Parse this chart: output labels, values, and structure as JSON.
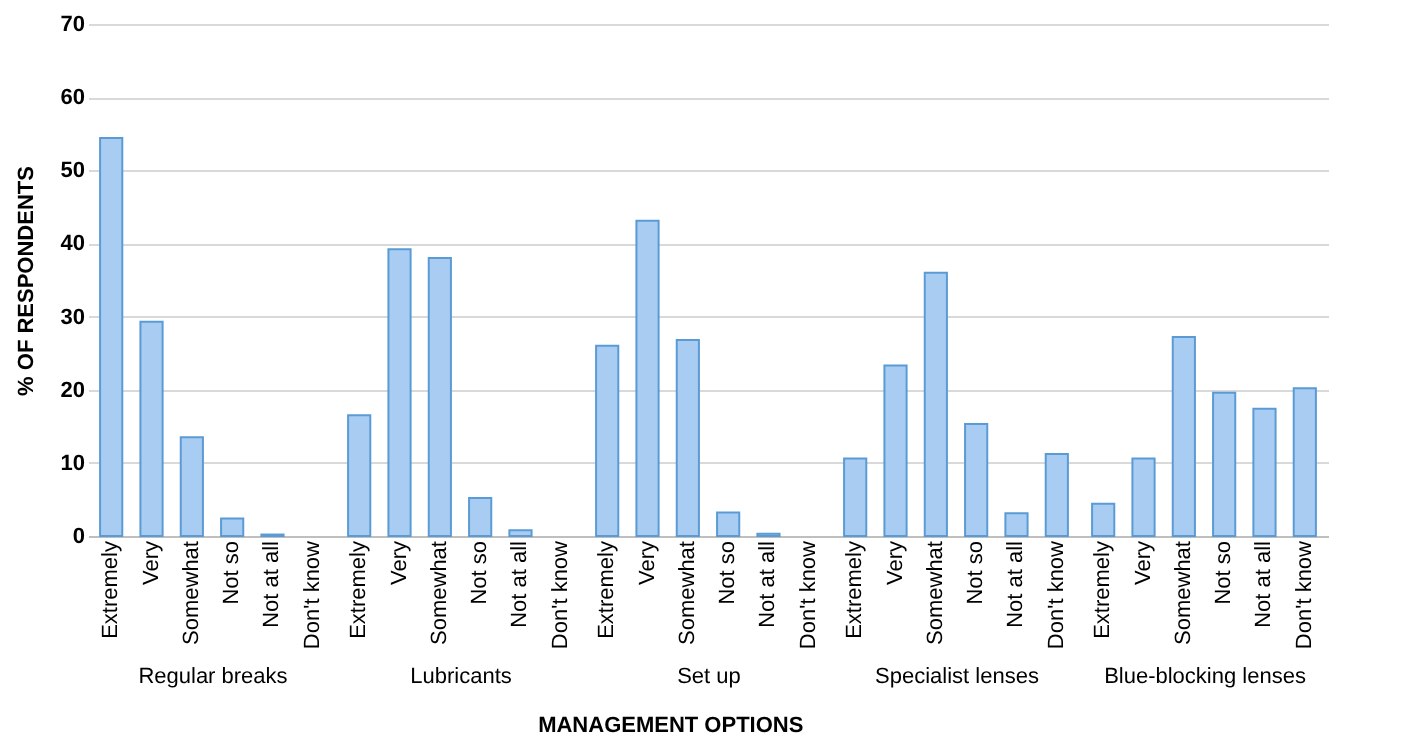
{
  "chart_data": {
    "type": "bar",
    "xlabel": "MANAGEMENT OPTIONS",
    "ylabel": "% OF RESPONDENTS",
    "categories": [
      "Extremely",
      "Very",
      "Somewhat",
      "Not so",
      "Not at all",
      "Don't know",
      "Extremely",
      "Very",
      "Somewhat",
      "Not so",
      "Not at all",
      "Don't know",
      "Extremely",
      "Very",
      "Somewhat",
      "Not so",
      "Not at all",
      "Don't know",
      "Extremely",
      "Very",
      "Somewhat",
      "Not so",
      "Not at all",
      "Don't know",
      "Extremely",
      "Very",
      "Somewhat",
      "Not so",
      "Not at all",
      "Don't know"
    ],
    "values": [
      54.4,
      29.3,
      13.5,
      2.4,
      0.2,
      0,
      16.5,
      39.2,
      38.0,
      5.2,
      0.8,
      0,
      26.0,
      43.1,
      26.8,
      3.2,
      0.3,
      0,
      10.6,
      23.3,
      36.0,
      15.3,
      3.1,
      11.2,
      4.4,
      10.6,
      27.2,
      19.6,
      17.4,
      20.2
    ],
    "color": "#a9cdf2",
    "annotations": [
      "Regular breaks",
      "Lubricants",
      "Set up",
      "Specialist lenses",
      "Blue-blocking lenses"
    ],
    "ylim": [
      0,
      70
    ],
    "yticks": [
      0,
      10,
      20,
      30,
      40,
      50,
      60,
      70
    ],
    "grid": "y"
  }
}
